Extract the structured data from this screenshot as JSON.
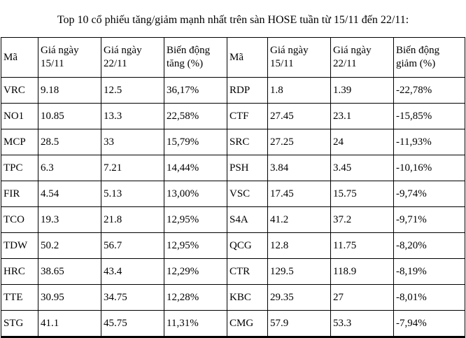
{
  "title": "Top 10 cổ phiếu tăng/giảm mạnh nhất trên sàn HOSE tuần từ 15/11 đến 22/11:",
  "colors": {
    "background": "#ffffff",
    "text": "#000000",
    "border": "#000000"
  },
  "table": {
    "headers": [
      {
        "line1": "Mã",
        "line2": ""
      },
      {
        "line1": "Giá ngày",
        "line2": "15/11"
      },
      {
        "line1": "Giá ngày",
        "line2": "22/11"
      },
      {
        "line1": "Biến động",
        "line2": "tăng (%)"
      },
      {
        "line1": "Mã",
        "line2": ""
      },
      {
        "line1": "Giá ngày",
        "line2": "15/11"
      },
      {
        "line1": "Giá ngày",
        "line2": "22/11"
      },
      {
        "line1": "Biến động",
        "line2": "giảm (%)"
      }
    ],
    "rows": [
      {
        "cells": [
          "VRC",
          "9.18",
          "12.5",
          "36,17%",
          "RDP",
          "1.8",
          "1.39",
          "-22,78%"
        ]
      },
      {
        "cells": [
          "NO1",
          "10.85",
          "13.3",
          "22,58%",
          "CTF",
          "27.45",
          "23.1",
          "-15,85%"
        ]
      },
      {
        "cells": [
          "MCP",
          "28.5",
          "33",
          "15,79%",
          "SRC",
          "27.25",
          "24",
          "-11,93%"
        ]
      },
      {
        "cells": [
          "TPC",
          "6.3",
          "7.21",
          "14,44%",
          "PSH",
          "3.84",
          "3.45",
          "-10,16%"
        ]
      },
      {
        "cells": [
          "FIR",
          "4.54",
          "5.13",
          "13,00%",
          "VSC",
          "17.45",
          "15.75",
          "-9,74%"
        ]
      },
      {
        "cells": [
          "TCO",
          "19.3",
          "21.8",
          "12,95%",
          "S4A",
          "41.2",
          "37.2",
          "-9,71%"
        ]
      },
      {
        "cells": [
          "TDW",
          "50.2",
          "56.7",
          "12,95%",
          "QCG",
          "12.8",
          "11.75",
          "-8,20%"
        ]
      },
      {
        "cells": [
          "HRC",
          "38.65",
          "43.4",
          "12,29%",
          "CTR",
          "129.5",
          "118.9",
          "-8,19%"
        ]
      },
      {
        "cells": [
          "TTE",
          "30.95",
          "34.75",
          "12,28%",
          "KBC",
          "29.35",
          "27",
          "-8,01%"
        ]
      },
      {
        "cells": [
          "STG",
          "41.1",
          "45.75",
          "11,31%",
          "CMG",
          "57.9",
          "53.3",
          "-7,94%"
        ]
      }
    ]
  }
}
